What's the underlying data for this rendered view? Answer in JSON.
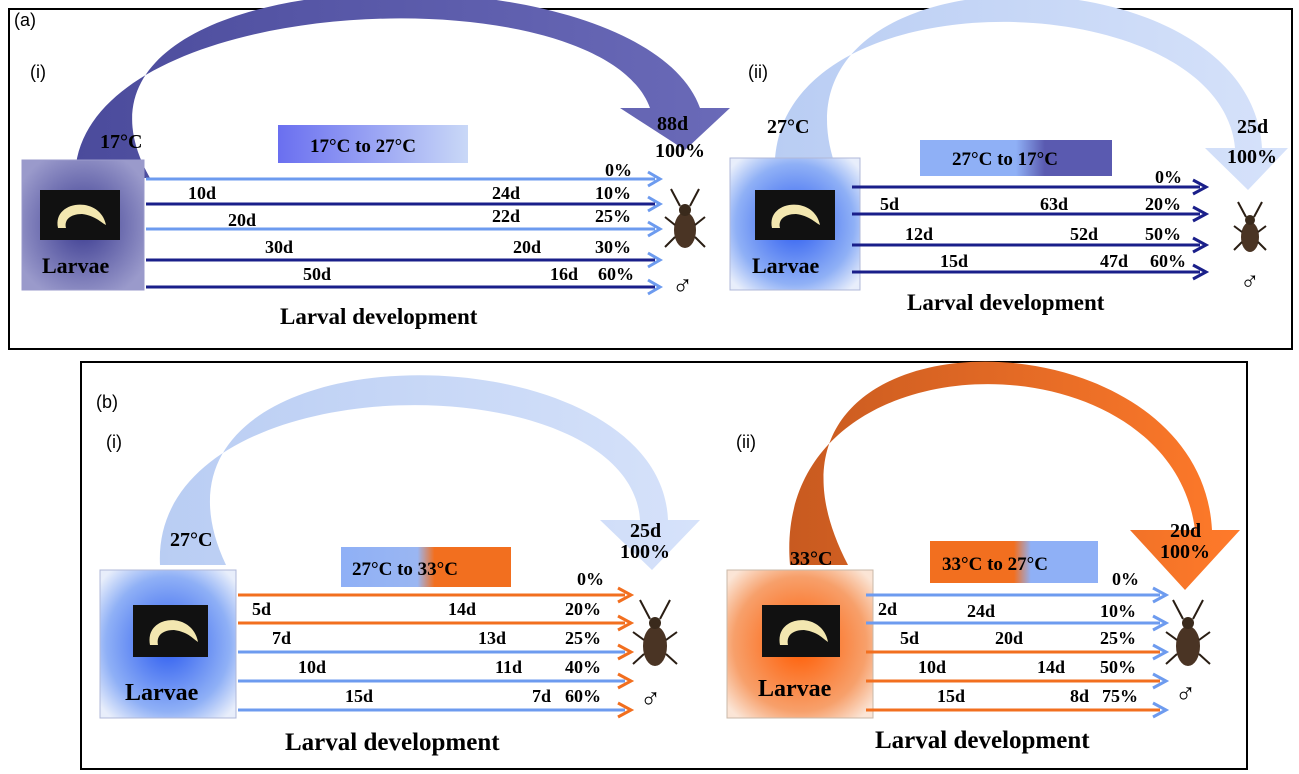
{
  "panel_a": {
    "label": "(a)",
    "sub_i": {
      "label": "(i)",
      "temp": "17°C",
      "shift_label": "17°C to 27°C",
      "arc_result": "88d",
      "arc_percent": "100%",
      "larvae_label": "Larvae",
      "caption": "Larval development",
      "rows": [
        {
          "first": "",
          "second": "",
          "pct": "0%"
        },
        {
          "first": "10d",
          "second": "24d",
          "pct": "10%"
        },
        {
          "first": "20d",
          "second": "22d",
          "pct": "25%"
        },
        {
          "first": "30d",
          "second": "20d",
          "pct": "30%"
        },
        {
          "first": "50d",
          "second": "16d",
          "pct": "60%"
        }
      ]
    },
    "sub_ii": {
      "label": "(ii)",
      "temp": "27°C",
      "shift_label": "27°C to 17°C",
      "arc_result": "25d",
      "arc_percent": "100%",
      "larvae_label": "Larvae",
      "caption": "Larval development",
      "rows": [
        {
          "first": "",
          "second": "",
          "pct": "0%"
        },
        {
          "first": "5d",
          "second": "63d",
          "pct": "20%"
        },
        {
          "first": "12d",
          "second": "52d",
          "pct": "50%"
        },
        {
          "first": "15d",
          "second": "47d",
          "pct": "60%"
        }
      ]
    }
  },
  "panel_b": {
    "label": "(b)",
    "sub_i": {
      "label": "(i)",
      "temp": "27°C",
      "shift_label": "27°C to 33°C",
      "arc_result": "25d",
      "arc_percent": "100%",
      "larvae_label": "Larvae",
      "caption": "Larval development",
      "rows": [
        {
          "first": "",
          "second": "",
          "pct": "0%"
        },
        {
          "first": "5d",
          "second": "14d",
          "pct": "20%"
        },
        {
          "first": "7d",
          "second": "13d",
          "pct": "25%"
        },
        {
          "first": "10d",
          "second": "11d",
          "pct": "40%"
        },
        {
          "first": "15d",
          "second": "7d",
          "pct": "60%"
        }
      ]
    },
    "sub_ii": {
      "label": "(ii)",
      "temp": "33°C",
      "shift_label": "33°C to 27°C",
      "arc_result": "20d",
      "arc_percent": "100%",
      "larvae_label": "Larvae",
      "caption": "Larval development",
      "rows": [
        {
          "first": "",
          "second": "",
          "pct": "0%"
        },
        {
          "first": "2d",
          "second": "24d",
          "pct": "10%"
        },
        {
          "first": "5d",
          "second": "20d",
          "pct": "25%"
        },
        {
          "first": "10d",
          "second": "14d",
          "pct": "50%"
        },
        {
          "first": "15d",
          "second": "8d",
          "pct": "75%"
        }
      ]
    }
  },
  "male_symbol": "♂",
  "colors": {
    "cold_dark": "#1a1f8a",
    "cold_arc": "#5a5aa8",
    "mid_blue": "#6d9bef",
    "pale_blue": "#c3d3f5",
    "warm_orange": "#f26f1f"
  }
}
